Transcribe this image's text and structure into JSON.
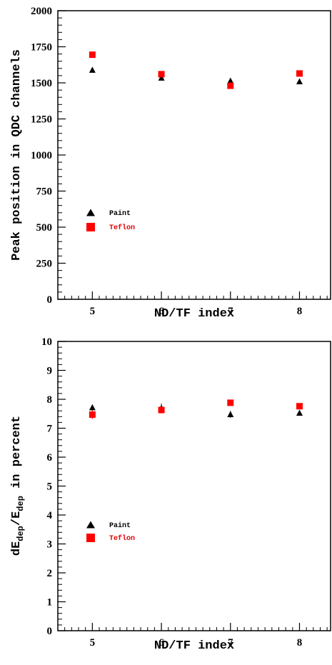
{
  "chart_data": [
    {
      "type": "scatter",
      "xlabel": "ND/TF index",
      "ylabel": "Peak position in QDC channels",
      "xlim": [
        4.5,
        8.45
      ],
      "ylim": [
        0,
        2000
      ],
      "xticks": [
        5,
        6,
        7,
        8
      ],
      "yticks": [
        0,
        250,
        500,
        750,
        1000,
        1250,
        1500,
        1750,
        2000
      ],
      "series": [
        {
          "name": "Paint",
          "marker": "triangle",
          "color": "#000000",
          "x": [
            5,
            6,
            7,
            8
          ],
          "y": [
            1590,
            1535,
            1515,
            1510
          ]
        },
        {
          "name": "Teflon",
          "marker": "square",
          "color": "#ff0000",
          "x": [
            5,
            6,
            7,
            8
          ],
          "y": [
            1695,
            1560,
            1480,
            1565
          ]
        }
      ],
      "legend": "middle-left"
    },
    {
      "type": "scatter",
      "xlabel": "ND/TF index",
      "ylabel": "dE_dep/E_dep in percent",
      "ylabel_parts": {
        "a": "dE",
        "b": "dep",
        "c": "/E",
        "d": "dep",
        "e": " in percent"
      },
      "xlim": [
        4.5,
        8.45
      ],
      "ylim": [
        0,
        10
      ],
      "xticks": [
        5,
        6,
        7,
        8
      ],
      "yticks": [
        0,
        1,
        2,
        3,
        4,
        5,
        6,
        7,
        8,
        9,
        10
      ],
      "series": [
        {
          "name": "Paint",
          "marker": "triangle",
          "color": "#000000",
          "x": [
            5,
            6,
            7,
            8
          ],
          "y": [
            7.72,
            7.7,
            7.48,
            7.53
          ],
          "err": [
            0.1,
            0.15,
            0.12,
            0.08
          ]
        },
        {
          "name": "Teflon",
          "marker": "square",
          "color": "#ff0000",
          "x": [
            5,
            6,
            7,
            8
          ],
          "y": [
            7.47,
            7.63,
            7.88,
            7.76
          ],
          "err": [
            0.15,
            0.12,
            0.1,
            0.06
          ]
        }
      ],
      "legend": "lower-left"
    }
  ]
}
